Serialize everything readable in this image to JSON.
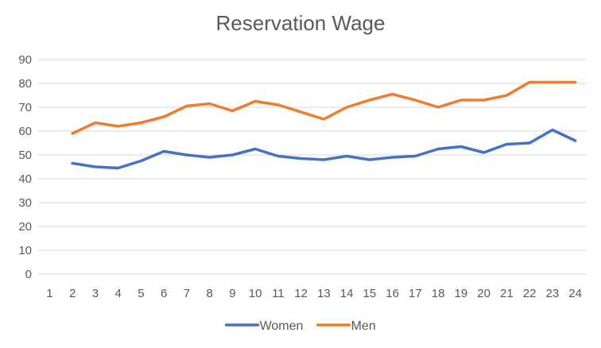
{
  "chart_data": {
    "type": "line",
    "title": "Reservation Wage",
    "xlabel": "",
    "ylabel": "",
    "categories": [
      "1",
      "2",
      "3",
      "4",
      "5",
      "6",
      "7",
      "8",
      "9",
      "10",
      "11",
      "12",
      "13",
      "14",
      "15",
      "16",
      "17",
      "18",
      "19",
      "20",
      "21",
      "22",
      "23",
      "24"
    ],
    "ylim": [
      0,
      90
    ],
    "yticks": [
      0,
      10,
      20,
      30,
      40,
      50,
      60,
      70,
      80,
      90
    ],
    "grid": true,
    "legend": "bottom",
    "series": [
      {
        "name": "Women",
        "color": "#4472C4",
        "values": [
          null,
          46.5,
          45,
          44.5,
          47.5,
          51.5,
          50,
          49,
          50,
          52.5,
          49.5,
          48.5,
          48,
          49.5,
          48,
          49,
          49.5,
          52.5,
          53.5,
          51,
          54.5,
          55,
          60.5,
          56
        ]
      },
      {
        "name": "Men",
        "color": "#ED7D31",
        "values": [
          null,
          59,
          63.5,
          62,
          63.5,
          66,
          70.5,
          71.5,
          68.5,
          72.5,
          71,
          68,
          65,
          70,
          73,
          75.5,
          73,
          70,
          73,
          73,
          75,
          80.5,
          80.5,
          80.5
        ]
      }
    ]
  }
}
